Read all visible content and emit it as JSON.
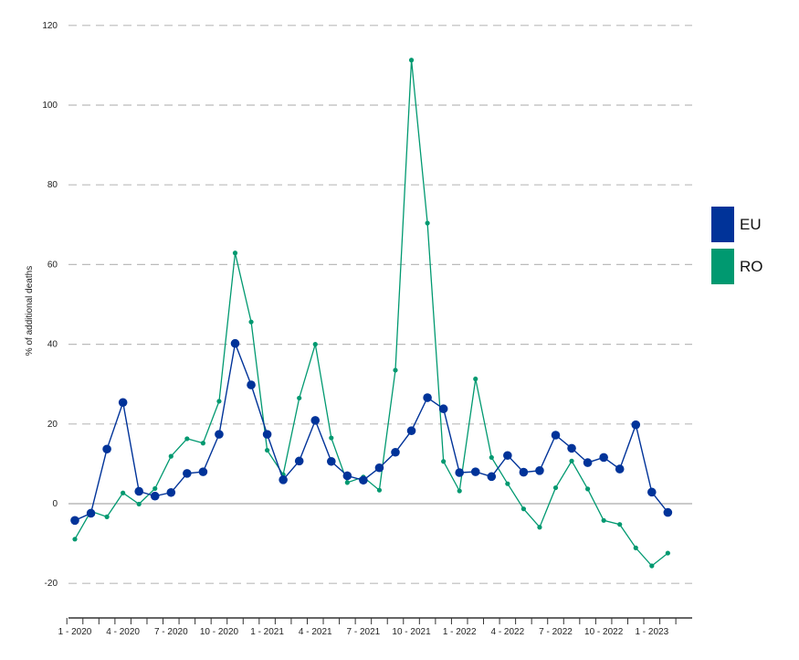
{
  "chart_data": {
    "type": "line",
    "title": "",
    "xlabel": "",
    "ylabel": "% of additional deaths",
    "ylim": [
      -28,
      120
    ],
    "yticks": [
      -20,
      0,
      20,
      40,
      60,
      80,
      100,
      120
    ],
    "grid": true,
    "legend_position": "right",
    "x": [
      "1 - 2020",
      "2 - 2020",
      "3 - 2020",
      "4 - 2020",
      "5 - 2020",
      "6 - 2020",
      "7 - 2020",
      "8 - 2020",
      "9 - 2020",
      "10 - 2020",
      "11 - 2020",
      "12 - 2020",
      "1 - 2021",
      "2 - 2021",
      "3 - 2021",
      "4 - 2021",
      "5 - 2021",
      "6 - 2021",
      "7 - 2021",
      "8 - 2021",
      "9 - 2021",
      "10 - 2021",
      "11 - 2021",
      "12 - 2021",
      "1 - 2022",
      "2 - 2022",
      "3 - 2022",
      "4 - 2022",
      "5 - 2022",
      "6 - 2022",
      "7 - 2022",
      "8 - 2022",
      "9 - 2022",
      "10 - 2022",
      "11 - 2022",
      "12 - 2022",
      "1 - 2023",
      "2 - 2023"
    ],
    "x_tick_labels": [
      "1 - 2020",
      "4 - 2020",
      "7 - 2020",
      "10 - 2020",
      "1 - 2021",
      "4 - 2021",
      "7 - 2021",
      "10 - 2021",
      "1 - 2022",
      "4 - 2022",
      "7 - 2022",
      "10 - 2022",
      "1 - 2023"
    ],
    "series": [
      {
        "name": "EU",
        "color": "#003399",
        "values": [
          -4.2,
          -2.4,
          13.7,
          25.4,
          3.1,
          1.9,
          2.8,
          7.6,
          8.0,
          17.4,
          40.2,
          29.8,
          17.4,
          6.0,
          10.7,
          20.9,
          10.6,
          7.0,
          5.9,
          9.0,
          12.9,
          18.3,
          26.6,
          23.8,
          7.8,
          8.0,
          6.8,
          12.1,
          7.9,
          8.3,
          17.2,
          13.9,
          10.3,
          11.6,
          8.7,
          19.8,
          2.9,
          -2.2
        ]
      },
      {
        "name": "RO",
        "color": "#009970",
        "values": [
          -8.9,
          -1.9,
          -3.3,
          2.7,
          -0.1,
          3.8,
          11.9,
          16.3,
          15.2,
          25.7,
          62.9,
          45.6,
          13.4,
          7.3,
          26.5,
          40.0,
          16.5,
          5.3,
          6.7,
          3.4,
          33.5,
          111.3,
          70.4,
          10.6,
          3.2,
          31.3,
          11.6,
          5.0,
          -1.3,
          -5.9,
          4.0,
          10.7,
          3.7,
          -4.2,
          -5.2,
          -11.1,
          -15.6,
          -12.4
        ]
      }
    ]
  }
}
